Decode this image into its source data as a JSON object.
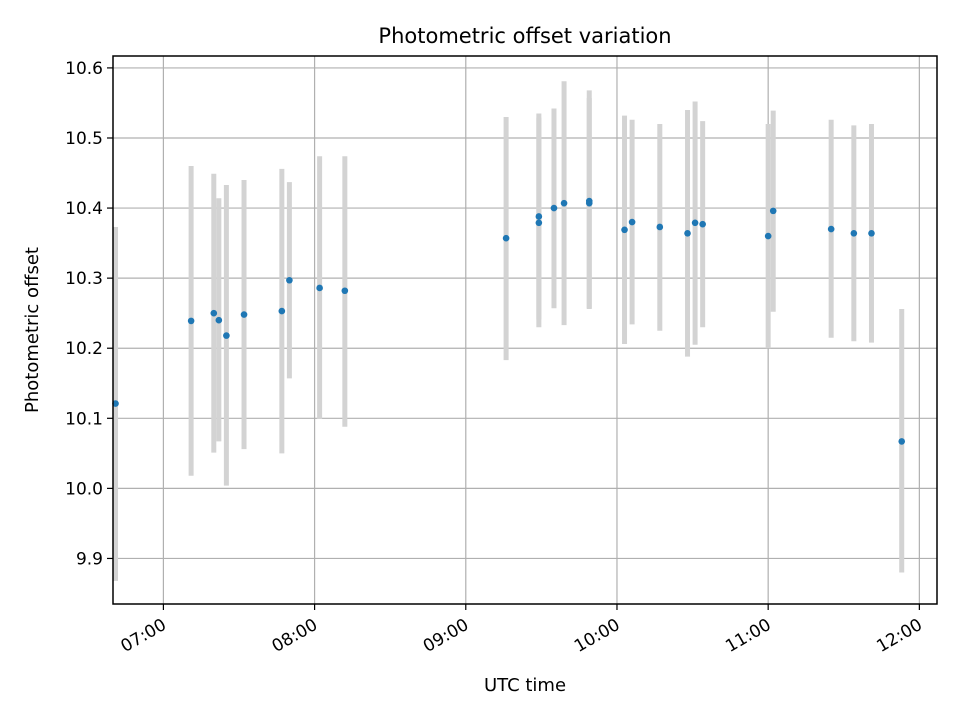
{
  "chart_data": {
    "type": "scatter",
    "title": "Photometric offset variation",
    "xlabel": "UTC time",
    "ylabel": "Photometric offset",
    "xlim": [
      "06:40",
      "12:07"
    ],
    "ylim": [
      9.835,
      10.617
    ],
    "x_ticks": [
      "07:00",
      "08:00",
      "09:00",
      "10:00",
      "11:00",
      "12:00"
    ],
    "y_ticks": [
      "9.9",
      "10.0",
      "10.1",
      "10.2",
      "10.3",
      "10.4",
      "10.5",
      "10.6"
    ],
    "grid": true,
    "point_color": "#1f77b4",
    "errorbar_color": "#d3d3d3",
    "points": [
      {
        "x": "06:41",
        "y": 10.121,
        "err_low": 9.868,
        "err_high": 10.373
      },
      {
        "x": "07:11",
        "y": 10.239,
        "err_low": 10.018,
        "err_high": 10.46
      },
      {
        "x": "07:20",
        "y": 10.25,
        "err_low": 10.051,
        "err_high": 10.449
      },
      {
        "x": "07:22",
        "y": 10.24,
        "err_low": 10.067,
        "err_high": 10.414
      },
      {
        "x": "07:25",
        "y": 10.218,
        "err_low": 10.004,
        "err_high": 10.433
      },
      {
        "x": "07:32",
        "y": 10.248,
        "err_low": 10.056,
        "err_high": 10.44
      },
      {
        "x": "07:47",
        "y": 10.253,
        "err_low": 10.05,
        "err_high": 10.456
      },
      {
        "x": "07:50",
        "y": 10.297,
        "err_low": 10.157,
        "err_high": 10.437
      },
      {
        "x": "08:02",
        "y": 10.286,
        "err_low": 10.099,
        "err_high": 10.474
      },
      {
        "x": "08:12",
        "y": 10.282,
        "err_low": 10.088,
        "err_high": 10.474
      },
      {
        "x": "09:16",
        "y": 10.357,
        "err_low": 10.183,
        "err_high": 10.53
      },
      {
        "x": "09:29",
        "y": 10.388,
        "err_low": 10.241,
        "err_high": 10.535
      },
      {
        "x": "09:29",
        "y": 10.379,
        "err_low": 10.23,
        "err_high": 10.529
      },
      {
        "x": "09:35",
        "y": 10.4,
        "err_low": 10.257,
        "err_high": 10.542
      },
      {
        "x": "09:39",
        "y": 10.407,
        "err_low": 10.233,
        "err_high": 10.581
      },
      {
        "x": "09:49",
        "y": 10.41,
        "err_low": 10.256,
        "err_high": 10.568
      },
      {
        "x": "09:49",
        "y": 10.407,
        "err_low": 10.257,
        "err_high": 10.557
      },
      {
        "x": "10:03",
        "y": 10.369,
        "err_low": 10.206,
        "err_high": 10.532
      },
      {
        "x": "10:06",
        "y": 10.38,
        "err_low": 10.234,
        "err_high": 10.526
      },
      {
        "x": "10:17",
        "y": 10.373,
        "err_low": 10.225,
        "err_high": 10.52
      },
      {
        "x": "10:28",
        "y": 10.364,
        "err_low": 10.188,
        "err_high": 10.54
      },
      {
        "x": "10:31",
        "y": 10.379,
        "err_low": 10.205,
        "err_high": 10.552
      },
      {
        "x": "10:34",
        "y": 10.377,
        "err_low": 10.23,
        "err_high": 10.524
      },
      {
        "x": "11:00",
        "y": 10.36,
        "err_low": 10.2,
        "err_high": 10.52
      },
      {
        "x": "11:02",
        "y": 10.396,
        "err_low": 10.252,
        "err_high": 10.539
      },
      {
        "x": "11:25",
        "y": 10.37,
        "err_low": 10.215,
        "err_high": 10.526
      },
      {
        "x": "11:34",
        "y": 10.364,
        "err_low": 10.21,
        "err_high": 10.518
      },
      {
        "x": "11:41",
        "y": 10.364,
        "err_low": 10.208,
        "err_high": 10.52
      },
      {
        "x": "11:53",
        "y": 10.067,
        "err_low": 9.88,
        "err_high": 10.256
      }
    ]
  }
}
